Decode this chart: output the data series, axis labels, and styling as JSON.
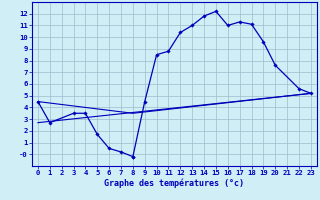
{
  "xlabel": "Graphe des températures (°c)",
  "bg_color": "#d0eef5",
  "grid_color": "#9bbccc",
  "line_color": "#0000bb",
  "line1_x": [
    0,
    1,
    3,
    4,
    5,
    6,
    7,
    8
  ],
  "line1_y": [
    4.5,
    2.7,
    3.5,
    3.5,
    1.7,
    0.5,
    0.2,
    -0.2
  ],
  "line2_x": [
    8,
    9,
    10,
    11,
    12,
    13,
    14,
    15,
    16,
    17,
    18,
    19,
    20,
    22,
    23
  ],
  "line2_y": [
    -0.2,
    4.5,
    8.5,
    8.8,
    10.4,
    11.0,
    11.8,
    12.2,
    11.0,
    11.3,
    11.1,
    9.6,
    7.6,
    5.6,
    5.2
  ],
  "line3_x": [
    0,
    23
  ],
  "line3_y": [
    2.7,
    5.2
  ],
  "line4_x": [
    0,
    8,
    23
  ],
  "line4_y": [
    4.5,
    3.5,
    5.2
  ],
  "ylim": [
    -1.0,
    13.0
  ],
  "xlim": [
    -0.5,
    23.5
  ],
  "yticks": [
    0,
    1,
    2,
    3,
    4,
    5,
    6,
    7,
    8,
    9,
    10,
    11,
    12
  ],
  "ytick_labels": [
    "-0",
    "1",
    "2",
    "3",
    "4",
    "5",
    "6",
    "7",
    "8",
    "9",
    "10",
    "11",
    "12"
  ],
  "xticks": [
    0,
    1,
    2,
    3,
    4,
    5,
    6,
    7,
    8,
    9,
    10,
    11,
    12,
    13,
    14,
    15,
    16,
    17,
    18,
    19,
    20,
    21,
    22,
    23
  ]
}
